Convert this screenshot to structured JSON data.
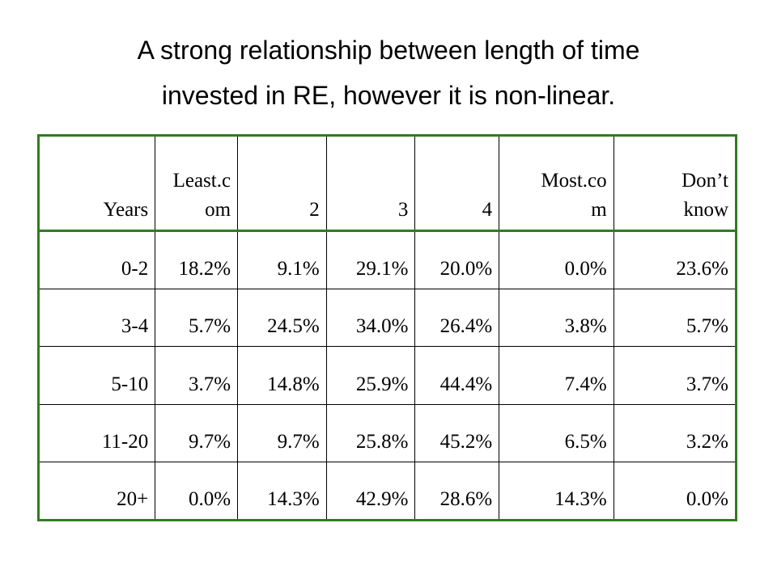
{
  "title": {
    "line1": "A strong relationship between length of time",
    "line2": "invested in RE, however it is non-linear."
  },
  "table": {
    "headers": [
      [
        "Years"
      ],
      [
        "Least.c",
        "om"
      ],
      [
        "2"
      ],
      [
        "3"
      ],
      [
        "4"
      ],
      [
        "Most.co",
        "m"
      ],
      [
        "Don’t",
        "know"
      ]
    ],
    "rows": [
      [
        "0-2",
        "18.2%",
        "9.1%",
        "29.1%",
        "20.0%",
        "0.0%",
        "23.6%"
      ],
      [
        "3-4",
        "5.7%",
        "24.5%",
        "34.0%",
        "26.4%",
        "3.8%",
        "5.7%"
      ],
      [
        "5-10",
        "3.7%",
        "14.8%",
        "25.9%",
        "44.4%",
        "7.4%",
        "3.7%"
      ],
      [
        "11-20",
        "9.7%",
        "9.7%",
        "25.8%",
        "45.2%",
        "6.5%",
        "3.2%"
      ],
      [
        "20+",
        "0.0%",
        "14.3%",
        "42.9%",
        "28.6%",
        "14.3%",
        "0.0%"
      ]
    ]
  },
  "colors": {
    "table_outer_border": "#2e7d1f",
    "table_inner_border": "#000000",
    "text": "#000000"
  }
}
